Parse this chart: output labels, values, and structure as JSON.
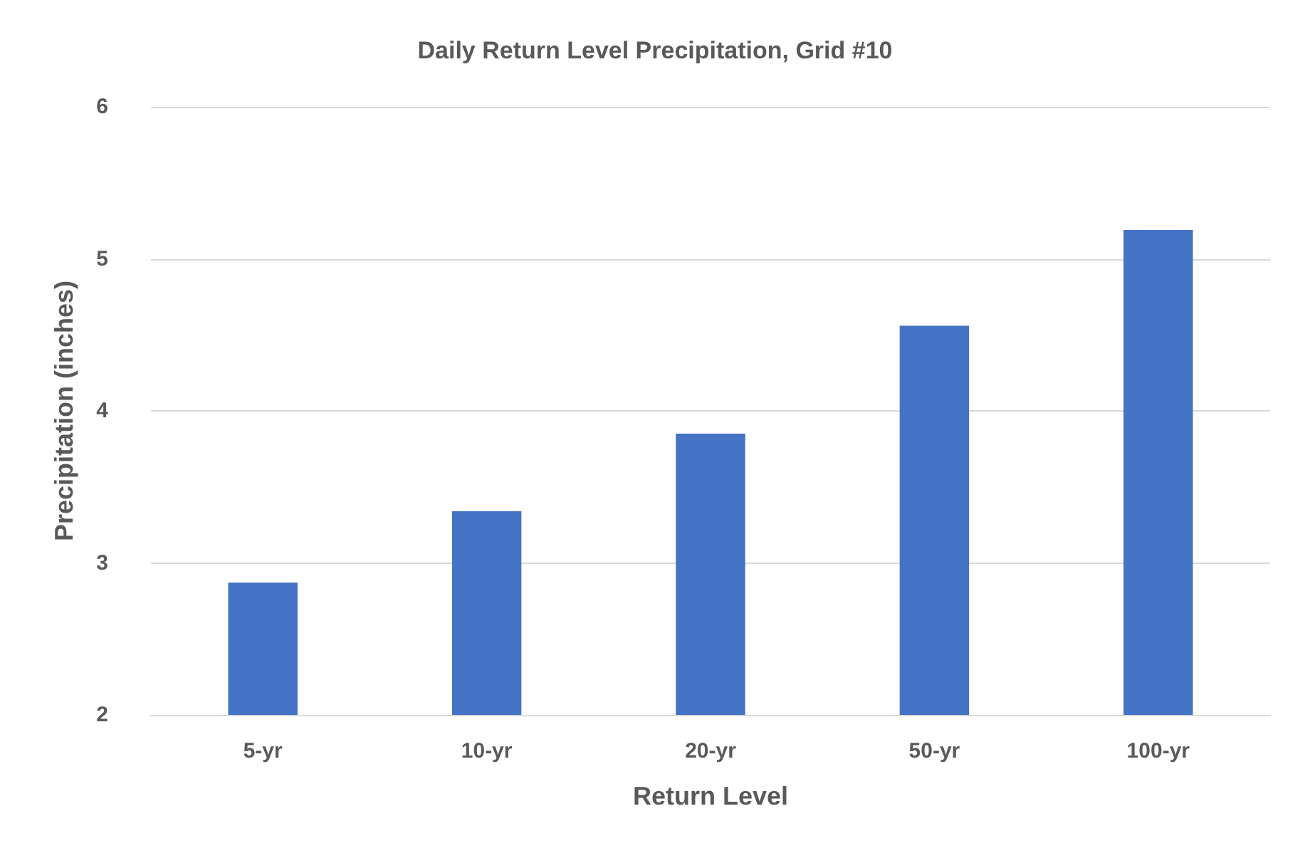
{
  "chart_data": {
    "type": "bar",
    "title": "Daily Return Level Precipitation, Grid #10",
    "xlabel": "Return Level",
    "ylabel": "Precipitation (inches)",
    "categories": [
      "5-yr",
      "10-yr",
      "20-yr",
      "50-yr",
      "100-yr"
    ],
    "values": [
      2.87,
      3.34,
      3.85,
      4.56,
      5.19
    ],
    "color": "#4472c4",
    "ylim": [
      2,
      6
    ],
    "yticks": [
      2,
      3,
      4,
      5,
      6
    ],
    "grid": "y"
  }
}
